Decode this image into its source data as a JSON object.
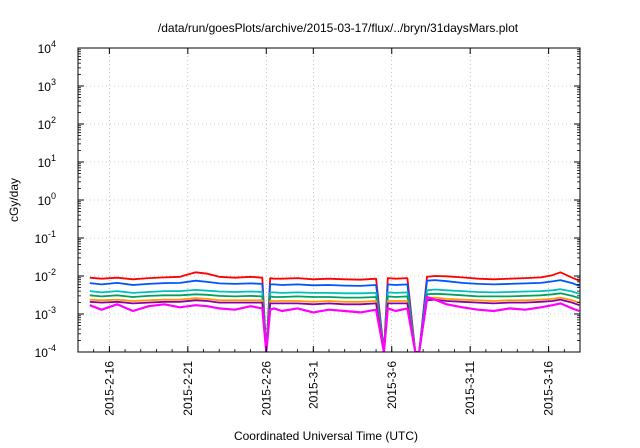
{
  "chart_data": {
    "type": "line",
    "title": "/data/run/goesPlots/archive/2015-03-17/flux/../bryn/31daysMars.plot",
    "xlabel": "Coordinated Universal Time (UTC)",
    "ylabel": "cGy/day",
    "yscale": "log",
    "ylim": [
      0.0001,
      10000
    ],
    "xlim": [
      "2015-02-14T00:00",
      "2015-03-18T00:00"
    ],
    "grid": true,
    "y_ticks": [
      {
        "base": "10",
        "exp": "4"
      },
      {
        "base": "10",
        "exp": "3"
      },
      {
        "base": "10",
        "exp": "2"
      },
      {
        "base": "10",
        "exp": "1"
      },
      {
        "base": "10",
        "exp": "0"
      },
      {
        "base": "10",
        "exp": "-1"
      },
      {
        "base": "10",
        "exp": "-2"
      },
      {
        "base": "10",
        "exp": "-3"
      },
      {
        "base": "10",
        "exp": "-4"
      }
    ],
    "x_ticks": [
      "2015-2-16",
      "2015-2-21",
      "2015-2-26",
      "2015-3-1",
      "2015-3-6",
      "2015-3-11",
      "2015-3-16"
    ],
    "x": [
      "2015-02-14T18:00",
      "2015-02-15T12:00",
      "2015-02-16T12:00",
      "2015-02-17T12:00",
      "2015-02-18T12:00",
      "2015-02-19T12:00",
      "2015-02-20T12:00",
      "2015-02-21T12:00",
      "2015-02-22T06:00",
      "2015-02-23T00:00",
      "2015-02-24T00:00",
      "2015-02-25T00:00",
      "2015-02-25T18:00",
      "2015-02-26T00:00",
      "2015-02-26T06:00",
      "2015-02-26T12:00",
      "2015-02-27T00:00",
      "2015-02-28T00:00",
      "2015-03-01T00:00",
      "2015-03-02T00:00",
      "2015-03-03T00:00",
      "2015-03-04T00:00",
      "2015-03-05T00:00",
      "2015-03-05T12:00",
      "2015-03-05T18:00",
      "2015-03-06T06:00",
      "2015-03-07T00:00",
      "2015-03-07T12:00",
      "2015-03-07T18:00",
      "2015-03-08T06:00",
      "2015-03-08T18:00",
      "2015-03-09T12:00",
      "2015-03-10T12:00",
      "2015-03-11T12:00",
      "2015-03-12T12:00",
      "2015-03-13T12:00",
      "2015-03-14T12:00",
      "2015-03-15T12:00",
      "2015-03-16T06:00",
      "2015-03-16T18:00",
      "2015-03-17T12:00",
      "2015-03-17T23:00"
    ],
    "series": [
      {
        "color": "#ff0000",
        "values": [
          0.009,
          0.0085,
          0.009,
          0.0082,
          0.0088,
          0.0092,
          0.0095,
          0.0125,
          0.0115,
          0.0095,
          0.009,
          0.0095,
          0.009,
          0.0001,
          0.0088,
          0.0085,
          0.0085,
          0.0088,
          0.0082,
          0.0085,
          0.0082,
          0.008,
          0.0085,
          0.0001,
          0.0088,
          0.0085,
          0.0088,
          0.0001,
          0.0001,
          0.0095,
          0.01,
          0.0098,
          0.0092,
          0.0085,
          0.0082,
          0.0085,
          0.0088,
          0.0092,
          0.0105,
          0.0125,
          0.009,
          0.0075
        ]
      },
      {
        "color": "#0055ff",
        "values": [
          0.0065,
          0.006,
          0.0066,
          0.0058,
          0.0062,
          0.0065,
          0.0066,
          0.0075,
          0.007,
          0.0064,
          0.0062,
          0.0064,
          0.0062,
          0.0001,
          0.006,
          0.006,
          0.0058,
          0.006,
          0.0057,
          0.0058,
          0.0056,
          0.0055,
          0.0058,
          0.0001,
          0.006,
          0.0058,
          0.006,
          0.0001,
          0.0001,
          0.0075,
          0.0078,
          0.0073,
          0.0066,
          0.0062,
          0.006,
          0.0062,
          0.0064,
          0.0066,
          0.0072,
          0.0078,
          0.0065,
          0.0055
        ]
      },
      {
        "color": "#00bfbf",
        "values": [
          0.004,
          0.0037,
          0.004,
          0.0036,
          0.0038,
          0.004,
          0.004,
          0.0043,
          0.0041,
          0.0039,
          0.0038,
          0.0039,
          0.0038,
          0.0001,
          0.0037,
          0.0037,
          0.0036,
          0.0037,
          0.0036,
          0.0036,
          0.0035,
          0.0035,
          0.0036,
          0.0001,
          0.0037,
          0.0036,
          0.0037,
          0.0001,
          0.0001,
          0.0042,
          0.0044,
          0.0042,
          0.004,
          0.0038,
          0.0037,
          0.0038,
          0.0039,
          0.004,
          0.0042,
          0.0045,
          0.0039,
          0.0034
        ]
      },
      {
        "color": "#00a060",
        "values": [
          0.0031,
          0.0029,
          0.0031,
          0.0028,
          0.003,
          0.0031,
          0.0031,
          0.0033,
          0.0032,
          0.003,
          0.0029,
          0.003,
          0.0029,
          0.0001,
          0.0029,
          0.0028,
          0.0028,
          0.0029,
          0.0028,
          0.0028,
          0.0027,
          0.0027,
          0.0028,
          0.0001,
          0.0029,
          0.0028,
          0.0029,
          0.0001,
          0.0001,
          0.0033,
          0.0034,
          0.0033,
          0.0031,
          0.0029,
          0.0029,
          0.0029,
          0.003,
          0.0031,
          0.0033,
          0.0035,
          0.003,
          0.0026
        ]
      },
      {
        "color": "#ff9900",
        "values": [
          0.0024,
          0.0023,
          0.0024,
          0.0022,
          0.0023,
          0.0024,
          0.0024,
          0.0026,
          0.0025,
          0.0023,
          0.0023,
          0.0023,
          0.0023,
          0.0001,
          0.0022,
          0.0022,
          0.0022,
          0.0022,
          0.0021,
          0.0022,
          0.0021,
          0.0021,
          0.0022,
          0.0001,
          0.0022,
          0.0022,
          0.0022,
          0.0001,
          0.0001,
          0.0026,
          0.0027,
          0.0025,
          0.0024,
          0.0023,
          0.0022,
          0.0023,
          0.0023,
          0.0024,
          0.0025,
          0.0027,
          0.0023,
          0.002
        ]
      },
      {
        "color": "#8800aa",
        "values": [
          0.0021,
          0.002,
          0.0021,
          0.0019,
          0.002,
          0.0021,
          0.0021,
          0.0023,
          0.0022,
          0.002,
          0.002,
          0.002,
          0.002,
          0.0001,
          0.0019,
          0.0019,
          0.0019,
          0.0019,
          0.0018,
          0.0019,
          0.0018,
          0.0018,
          0.0019,
          0.0001,
          0.0019,
          0.0019,
          0.0019,
          0.0001,
          0.0001,
          0.0023,
          0.0024,
          0.0022,
          0.0021,
          0.002,
          0.0019,
          0.002,
          0.002,
          0.0021,
          0.0022,
          0.0024,
          0.002,
          0.0017
        ]
      },
      {
        "color": "#ff00ff",
        "values": [
          0.0017,
          0.0013,
          0.0018,
          0.0012,
          0.0016,
          0.0018,
          0.0015,
          0.0017,
          0.0016,
          0.0014,
          0.0013,
          0.0016,
          0.0014,
          0.0001,
          0.0013,
          0.0014,
          0.0012,
          0.0014,
          0.0011,
          0.0013,
          0.0012,
          0.0011,
          0.0013,
          0.0001,
          0.0014,
          0.0012,
          0.0014,
          0.0001,
          0.0001,
          0.0028,
          0.0024,
          0.0018,
          0.0015,
          0.0013,
          0.0012,
          0.0014,
          0.0013,
          0.0015,
          0.0017,
          0.0019,
          0.0014,
          0.0012
        ]
      }
    ]
  }
}
